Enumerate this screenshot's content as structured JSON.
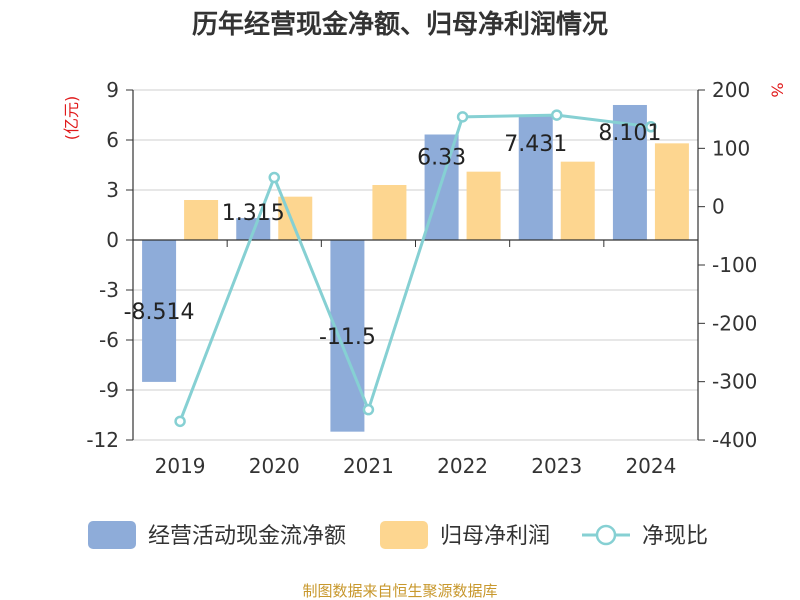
{
  "title": "历年经营现金净额、归母净利润情况",
  "left_unit": "(亿元)",
  "right_unit": "%",
  "source": "制图数据来自恒生聚源数据库",
  "colors": {
    "cash_flow": "#8eacd9",
    "net_profit": "#fdd690",
    "ratio": "#86d0d3"
  },
  "chart_data": {
    "type": "bar",
    "categories": [
      "2019",
      "2020",
      "2021",
      "2022",
      "2023",
      "2024"
    ],
    "series": [
      {
        "name": "经营活动现金流净额",
        "type": "bar",
        "axis": "left",
        "values": [
          -8.514,
          1.315,
          -11.5,
          6.33,
          7.431,
          8.101
        ],
        "labels": [
          "-8.514",
          "1.315",
          "-11.5",
          "6.33",
          "7.431",
          "8.101"
        ]
      },
      {
        "name": "归母净利润",
        "type": "bar",
        "axis": "left",
        "values": [
          2.4,
          2.6,
          3.3,
          4.1,
          4.7,
          5.8
        ]
      },
      {
        "name": "净现比",
        "type": "line",
        "axis": "right",
        "values": [
          -368,
          50,
          -348,
          154,
          157,
          137
        ]
      }
    ],
    "y_left": {
      "min": -12,
      "max": 9,
      "ticks": [
        "9",
        "6",
        "3",
        "0",
        "-3",
        "-6",
        "-9",
        "-12"
      ]
    },
    "y_right": {
      "min": -400,
      "max": 200,
      "ticks": [
        "200",
        "100",
        "0",
        "-100",
        "-200",
        "-300",
        "-400"
      ]
    },
    "legend_position": "bottom"
  }
}
